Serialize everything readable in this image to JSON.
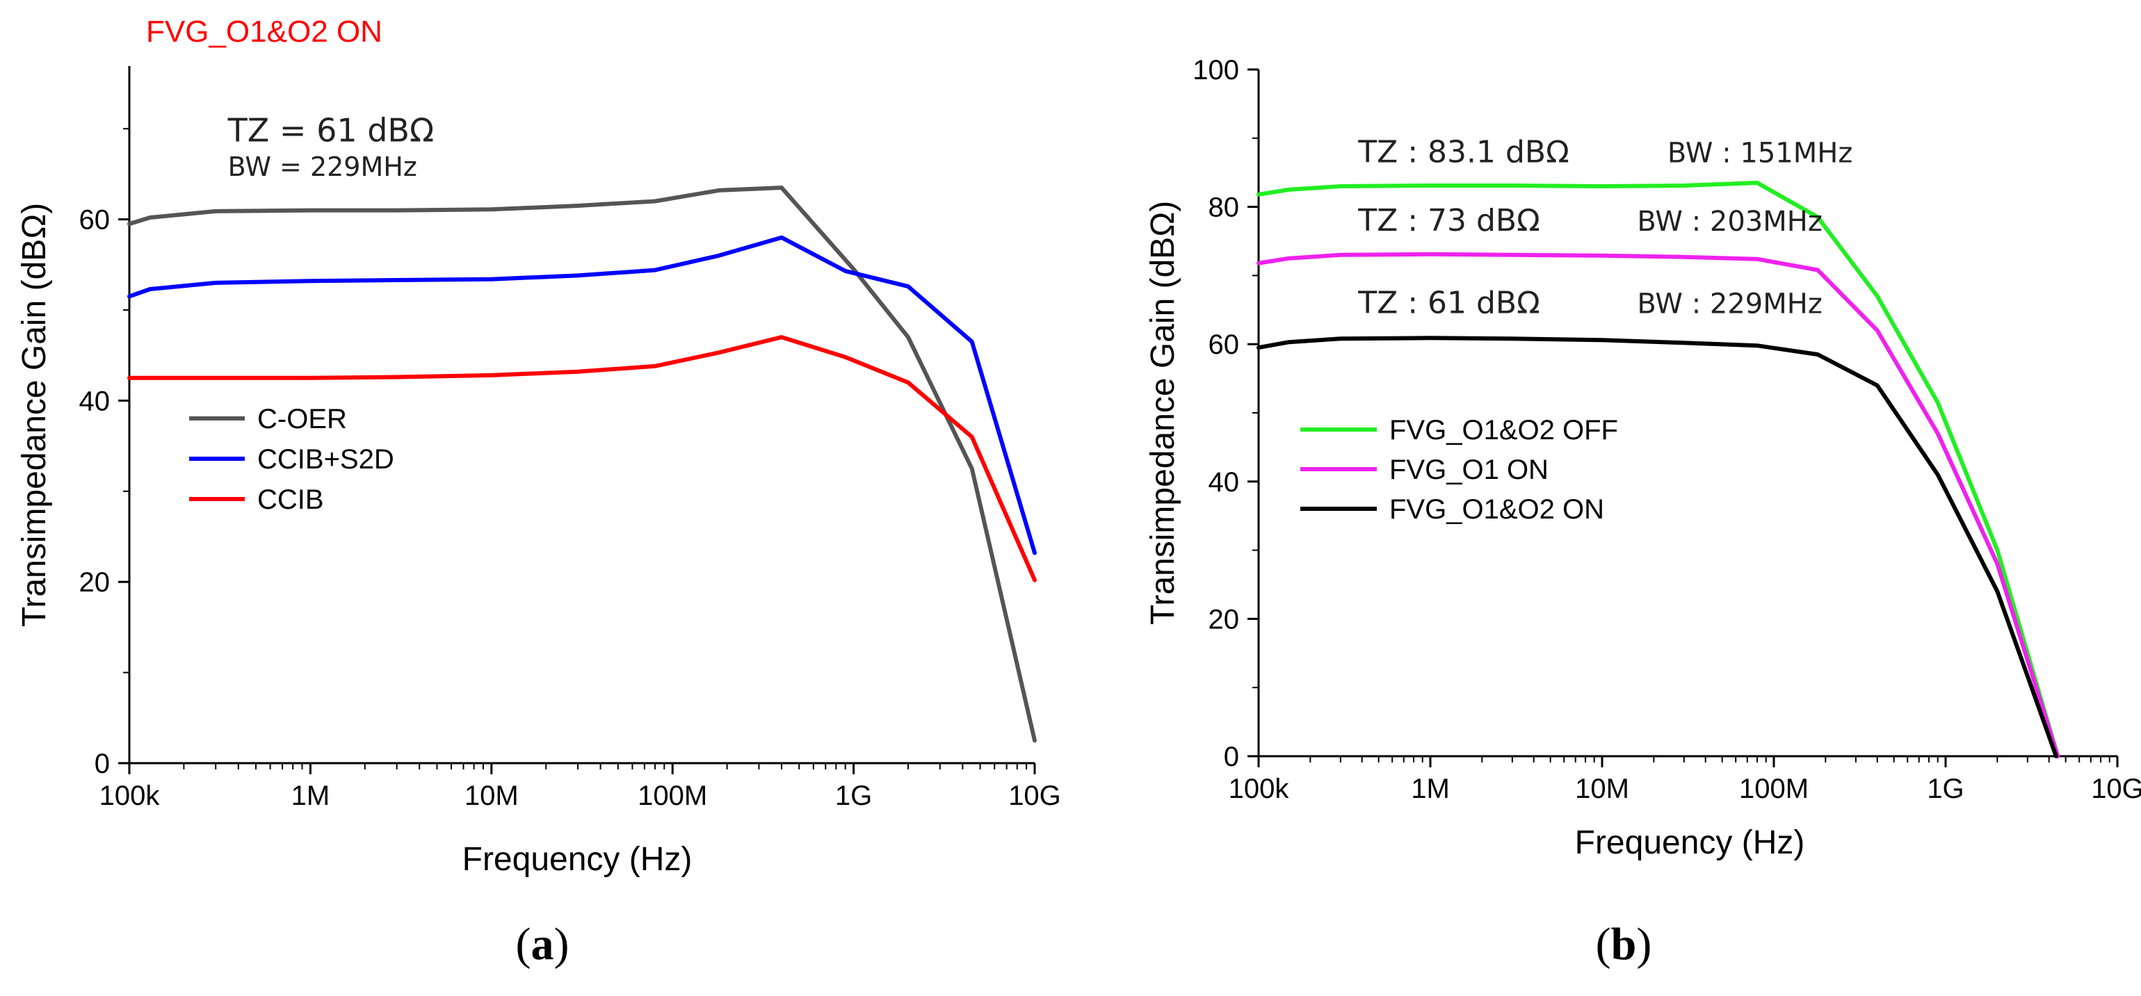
{
  "chart_data": [
    {
      "type": "line",
      "panel": "(a)",
      "caption_letter": "a",
      "corner_label": "FVG_O1&O2 ON",
      "xlabel": "Frequency (Hz)",
      "ylabel": "Transimpedance Gain (dBΩ)",
      "xscale": "log",
      "xlim": [
        100000,
        10000000000
      ],
      "ylim": [
        0,
        75
      ],
      "xticks": [
        {
          "value": 100000,
          "label": "100k"
        },
        {
          "value": 1000000,
          "label": "1M"
        },
        {
          "value": 10000000,
          "label": "10M"
        },
        {
          "value": 100000000,
          "label": "100M"
        },
        {
          "value": 1000000000,
          "label": "1G"
        },
        {
          "value": 10000000000,
          "label": "10G"
        }
      ],
      "yticks": [
        {
          "value": 0,
          "label": "0"
        },
        {
          "value": 20,
          "label": "20"
        },
        {
          "value": 40,
          "label": "40"
        },
        {
          "value": 60,
          "label": "60"
        }
      ],
      "annotations": [
        {
          "text": "TZ = 61 dBΩ",
          "x": 350000,
          "y": 68.6,
          "size": "large"
        },
        {
          "text": "BW = 229MHz",
          "x": 350000,
          "y": 64.8,
          "size": "small"
        }
      ],
      "legend": {
        "placement": "middle-left",
        "entries": [
          "C-OER",
          "CCIB+S2D",
          "CCIB"
        ]
      },
      "series": [
        {
          "name": "C-OER",
          "color": "#555555",
          "x": [
            100000,
            130000,
            300000,
            1000000,
            3000000,
            10000000,
            30000000,
            80000000,
            180000000,
            400000000,
            1000000000,
            2000000000,
            4500000000,
            10000000000
          ],
          "y": [
            59.5,
            60.2,
            60.9,
            61.0,
            61.0,
            61.1,
            61.5,
            62.0,
            63.2,
            63.5,
            54.5,
            47.0,
            32.5,
            2.5
          ]
        },
        {
          "name": "CCIB+S2D",
          "color": "#0000ff",
          "x": [
            100000,
            130000,
            300000,
            1000000,
            3000000,
            10000000,
            30000000,
            80000000,
            180000000,
            400000000,
            900000000,
            2000000000,
            4500000000,
            10000000000
          ],
          "y": [
            51.5,
            52.3,
            53.0,
            53.2,
            53.3,
            53.4,
            53.8,
            54.4,
            56.0,
            58.0,
            54.3,
            52.6,
            46.5,
            23.2
          ]
        },
        {
          "name": "CCIB",
          "color": "#ff0000",
          "x": [
            100000,
            300000,
            1000000,
            3000000,
            10000000,
            30000000,
            80000000,
            180000000,
            400000000,
            900000000,
            2000000000,
            4500000000,
            10000000000
          ],
          "y": [
            42.5,
            42.5,
            42.5,
            42.6,
            42.8,
            43.2,
            43.8,
            45.3,
            47.0,
            44.8,
            42.0,
            36.0,
            20.2
          ]
        }
      ]
    },
    {
      "type": "line",
      "panel": "(b)",
      "caption_letter": "b",
      "xlabel": "Frequency (Hz)",
      "ylabel": "Transimpedance Gain (dBΩ)",
      "xscale": "log",
      "xlim": [
        100000,
        10000000000
      ],
      "ylim": [
        0,
        100
      ],
      "xticks": [
        {
          "value": 100000,
          "label": "100k"
        },
        {
          "value": 1000000,
          "label": "1M"
        },
        {
          "value": 10000000,
          "label": "10M"
        },
        {
          "value": 100000000,
          "label": "100M"
        },
        {
          "value": 1000000000,
          "label": "1G"
        },
        {
          "value": 10000000000,
          "label": "10G"
        }
      ],
      "yticks": [
        {
          "value": 0,
          "label": "0"
        },
        {
          "value": 20,
          "label": "20"
        },
        {
          "value": 40,
          "label": "40"
        },
        {
          "value": 60,
          "label": "60"
        },
        {
          "value": 80,
          "label": "80"
        },
        {
          "value": 100,
          "label": "100"
        }
      ],
      "annotations": [
        {
          "text": "TZ : 83.1 dBΩ",
          "x": 380000,
          "y": 86.5,
          "size": "large"
        },
        {
          "text": "BW : 151MHz",
          "x": 24000000,
          "y": 86.5,
          "size": "mid"
        },
        {
          "text": "TZ : 73 dBΩ",
          "x": 380000,
          "y": 76.5,
          "size": "large"
        },
        {
          "text": "BW : 203MHz",
          "x": 16000000,
          "y": 76.5,
          "size": "mid"
        },
        {
          "text": "TZ : 61 dBΩ",
          "x": 380000,
          "y": 64.5,
          "size": "large"
        },
        {
          "text": "BW : 229MHz",
          "x": 16000000,
          "y": 64.5,
          "size": "mid"
        }
      ],
      "legend": {
        "placement": "middle-left",
        "entries": [
          "FVG_O1&O2 OFF",
          "FVG_O1 ON",
          "FVG_O1&O2 ON"
        ]
      },
      "series": [
        {
          "name": "FVG_O1&O2 OFF",
          "color": "#22ee22",
          "x": [
            100000,
            150000,
            300000,
            1000000,
            3000000,
            10000000,
            30000000,
            80000000,
            180000000,
            400000000,
            900000000,
            2000000000,
            4500000000
          ],
          "y": [
            81.8,
            82.5,
            83.0,
            83.1,
            83.1,
            83.0,
            83.1,
            83.5,
            78.5,
            67.0,
            51.5,
            30.0,
            0.0
          ]
        },
        {
          "name": "FVG_O1 ON",
          "color": "#ee22ee",
          "x": [
            100000,
            150000,
            300000,
            1000000,
            3000000,
            10000000,
            30000000,
            80000000,
            180000000,
            400000000,
            900000000,
            2000000000,
            4500000000
          ],
          "y": [
            71.8,
            72.5,
            73.0,
            73.1,
            73.0,
            72.9,
            72.7,
            72.4,
            70.8,
            62.0,
            47.0,
            28.0,
            0.0
          ]
        },
        {
          "name": "FVG_O1&O2 ON",
          "color": "#000000",
          "x": [
            100000,
            150000,
            300000,
            1000000,
            3000000,
            10000000,
            30000000,
            80000000,
            180000000,
            400000000,
            900000000,
            2000000000,
            4400000000
          ],
          "y": [
            59.5,
            60.3,
            60.8,
            60.9,
            60.8,
            60.6,
            60.2,
            59.8,
            58.5,
            54.0,
            41.0,
            24.0,
            0.0
          ]
        }
      ]
    }
  ]
}
